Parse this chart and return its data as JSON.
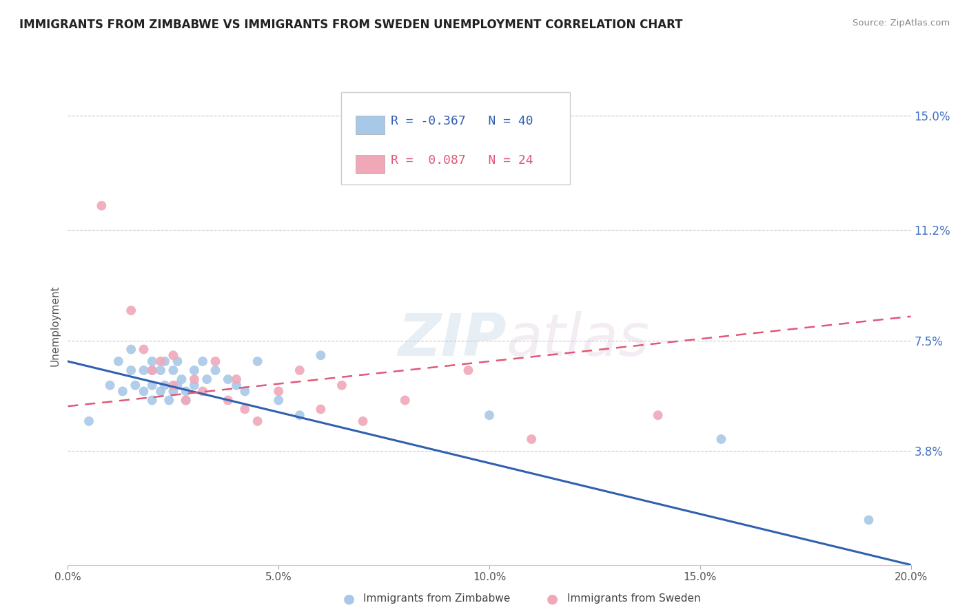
{
  "title": "IMMIGRANTS FROM ZIMBABWE VS IMMIGRANTS FROM SWEDEN UNEMPLOYMENT CORRELATION CHART",
  "source": "Source: ZipAtlas.com",
  "ylabel": "Unemployment",
  "xlim": [
    0.0,
    0.2
  ],
  "ylim": [
    0.0,
    0.16
  ],
  "xtick_vals": [
    0.0,
    0.05,
    0.1,
    0.15,
    0.2
  ],
  "xtick_labels": [
    "0.0%",
    "5.0%",
    "10.0%",
    "15.0%",
    "20.0%"
  ],
  "ytick_vals": [
    0.0,
    0.038,
    0.075,
    0.112,
    0.15
  ],
  "ytick_labels": [
    "",
    "3.8%",
    "7.5%",
    "11.2%",
    "15.0%"
  ],
  "grid_color": "#c8c8c8",
  "watermark_zip": "ZIP",
  "watermark_atlas": "atlas",
  "legend_line1": "R = -0.367   N = 40",
  "legend_line2": "R =  0.087   N = 24",
  "legend_label1": "Immigrants from Zimbabwe",
  "legend_label2": "Immigrants from Sweden",
  "color_blue": "#a8c8e8",
  "color_pink": "#f0a8b8",
  "color_blue_line": "#3060b0",
  "color_pink_line": "#e05878",
  "color_legend_text": "#3060b0",
  "blue_scatter_x": [
    0.005,
    0.01,
    0.012,
    0.013,
    0.015,
    0.015,
    0.016,
    0.018,
    0.018,
    0.02,
    0.02,
    0.02,
    0.02,
    0.022,
    0.022,
    0.023,
    0.023,
    0.024,
    0.025,
    0.025,
    0.026,
    0.026,
    0.027,
    0.028,
    0.028,
    0.03,
    0.03,
    0.032,
    0.033,
    0.035,
    0.038,
    0.04,
    0.042,
    0.045,
    0.05,
    0.055,
    0.06,
    0.1,
    0.155,
    0.19
  ],
  "blue_scatter_y": [
    0.048,
    0.06,
    0.068,
    0.058,
    0.072,
    0.065,
    0.06,
    0.065,
    0.058,
    0.068,
    0.065,
    0.06,
    0.055,
    0.065,
    0.058,
    0.068,
    0.06,
    0.055,
    0.065,
    0.058,
    0.068,
    0.06,
    0.062,
    0.058,
    0.055,
    0.065,
    0.06,
    0.068,
    0.062,
    0.065,
    0.062,
    0.06,
    0.058,
    0.068,
    0.055,
    0.05,
    0.07,
    0.05,
    0.042,
    0.015
  ],
  "pink_scatter_x": [
    0.008,
    0.015,
    0.018,
    0.02,
    0.022,
    0.025,
    0.025,
    0.028,
    0.03,
    0.032,
    0.035,
    0.038,
    0.04,
    0.042,
    0.045,
    0.05,
    0.055,
    0.06,
    0.065,
    0.07,
    0.08,
    0.095,
    0.11,
    0.14
  ],
  "pink_scatter_y": [
    0.12,
    0.085,
    0.072,
    0.065,
    0.068,
    0.07,
    0.06,
    0.055,
    0.062,
    0.058,
    0.068,
    0.055,
    0.062,
    0.052,
    0.048,
    0.058,
    0.065,
    0.052,
    0.06,
    0.048,
    0.055,
    0.065,
    0.042,
    0.05
  ],
  "blue_trend_x": [
    0.0,
    0.2
  ],
  "blue_trend_y": [
    0.068,
    0.0
  ],
  "pink_trend_x": [
    0.0,
    0.2
  ],
  "pink_trend_y": [
    0.053,
    0.083
  ]
}
